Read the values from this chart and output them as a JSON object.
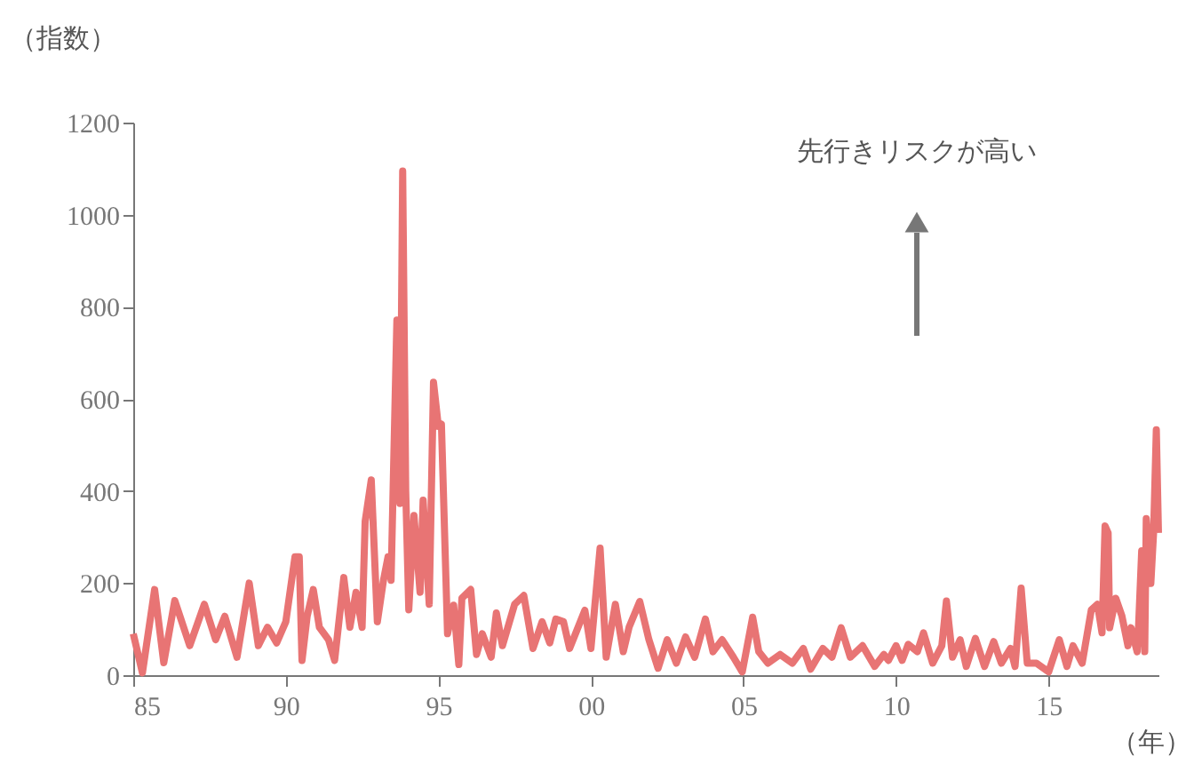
{
  "chart_data": {
    "type": "line",
    "xlabel": "（年）",
    "ylabel": "（指数）",
    "annotations": [
      "先行きリスクが高い"
    ],
    "xlim": [
      1985,
      2018.6
    ],
    "ylim": [
      0,
      1200
    ],
    "xticks": [
      {
        "value": 1985,
        "label": "85"
      },
      {
        "value": 1990,
        "label": "90"
      },
      {
        "value": 1995,
        "label": "95"
      },
      {
        "value": 2000,
        "label": "00"
      },
      {
        "value": 2005,
        "label": "05"
      },
      {
        "value": 2010,
        "label": "10"
      },
      {
        "value": 2015,
        "label": "15"
      }
    ],
    "yticks": [
      0,
      200,
      400,
      600,
      800,
      1000,
      1200
    ],
    "grid": false,
    "marker": "none",
    "line_style": "solid",
    "x": [
      1985.0,
      1985.3,
      1985.7,
      1986.0,
      1986.36,
      1986.85,
      1987.33,
      1987.7,
      1988.0,
      1988.4,
      1988.8,
      1989.1,
      1989.4,
      1989.7,
      1990.0,
      1990.3,
      1990.44,
      1990.53,
      1990.7,
      1990.9,
      1991.1,
      1991.4,
      1991.6,
      1991.9,
      1992.1,
      1992.3,
      1992.5,
      1992.6,
      1992.8,
      1993.0,
      1993.2,
      1993.35,
      1993.45,
      1993.64,
      1993.74,
      1993.83,
      1993.93,
      1994.03,
      1994.2,
      1994.4,
      1994.5,
      1994.7,
      1994.84,
      1995.0,
      1995.1,
      1995.3,
      1995.5,
      1995.67,
      1995.77,
      1996.06,
      1996.25,
      1996.44,
      1996.73,
      1996.9,
      1997.1,
      1997.5,
      1997.8,
      1998.1,
      1998.4,
      1998.65,
      1998.85,
      1999.1,
      1999.3,
      1999.8,
      2000.0,
      2000.3,
      2000.5,
      2000.8,
      2001.06,
      2001.25,
      2001.6,
      2001.9,
      2002.2,
      2002.5,
      2002.8,
      2003.1,
      2003.4,
      2003.75,
      2004.0,
      2004.3,
      2004.67,
      2004.96,
      2005.3,
      2005.5,
      2005.8,
      2006.2,
      2006.6,
      2006.96,
      2007.2,
      2007.6,
      2007.9,
      2008.2,
      2008.5,
      2008.9,
      2009.3,
      2009.6,
      2009.75,
      2010.0,
      2010.2,
      2010.4,
      2010.7,
      2010.9,
      2011.2,
      2011.5,
      2011.65,
      2011.85,
      2012.1,
      2012.3,
      2012.6,
      2012.9,
      2013.2,
      2013.45,
      2013.75,
      2013.9,
      2014.1,
      2014.3,
      2014.6,
      2015.0,
      2015.35,
      2015.6,
      2015.8,
      2016.1,
      2016.4,
      2016.6,
      2016.75,
      2016.85,
      2016.95,
      2017.0,
      2017.2,
      2017.4,
      2017.6,
      2017.7,
      2017.9,
      2017.95,
      2018.05,
      2018.15,
      2018.2,
      2018.35,
      2018.44,
      2018.53,
      2018.6
    ],
    "series": [
      {
        "color": "#e87474",
        "values": [
          90,
          5,
          186,
          27,
          162,
          64,
          154,
          77,
          128,
          39,
          200,
          64,
          104,
          70,
          116,
          257,
          257,
          32,
          128,
          186,
          104,
          77,
          32,
          212,
          104,
          180,
          104,
          334,
          424,
          116,
          206,
          257,
          206,
          771,
          373,
          1095,
          400,
          142,
          347,
          180,
          380,
          154,
          636,
          540,
          545,
          90,
          152,
          23,
          167,
          186,
          45,
          90,
          39,
          135,
          64,
          154,
          173,
          58,
          116,
          70,
          122,
          116,
          58,
          141,
          58,
          276,
          39,
          154,
          51,
          104,
          160,
          77,
          15,
          77,
          26,
          83,
          39,
          122,
          51,
          77,
          39,
          7,
          126,
          51,
          26,
          45,
          26,
          58,
          13,
          58,
          39,
          103,
          39,
          64,
          19,
          45,
          32,
          64,
          32,
          67,
          51,
          92,
          26,
          64,
          161,
          39,
          77,
          19,
          80,
          19,
          73,
          26,
          58,
          19,
          189,
          26,
          26,
          7,
          77,
          19,
          64,
          26,
          142,
          154,
          92,
          324,
          309,
          103,
          167,
          129,
          64,
          103,
          51,
          109,
          270,
          51,
          340,
          199,
          309,
          533,
          309
        ]
      }
    ]
  }
}
